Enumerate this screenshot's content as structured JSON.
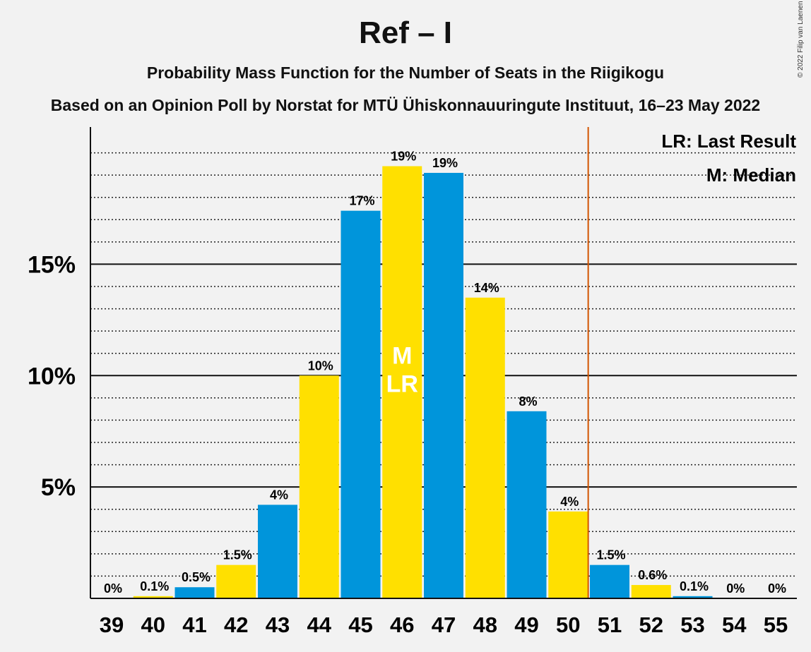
{
  "header": {
    "title": "Ref – I",
    "subtitle": "Probability Mass Function for the Number of Seats in the Riigikogu",
    "source": "Based on an Opinion Poll by Norstat for MTÜ Ühiskonnauuringute Instituut, 16–23 May 2022",
    "copyright": "© 2022 Filip van Laenen"
  },
  "legend": {
    "last_result": "LR: Last Result",
    "median": "M: Median"
  },
  "colors": {
    "blue": "#0095db",
    "yellow": "#ffe000",
    "last_result_line": "#d35400",
    "background": "#f2f2f2"
  },
  "chart_data": {
    "type": "bar",
    "categories": [
      "39",
      "40",
      "41",
      "42",
      "43",
      "44",
      "45",
      "46",
      "47",
      "48",
      "49",
      "50",
      "51",
      "52",
      "53",
      "54",
      "55"
    ],
    "values": [
      0,
      0.1,
      0.5,
      1.5,
      4.2,
      10.0,
      17.4,
      19.4,
      19.1,
      13.5,
      8.4,
      3.9,
      1.5,
      0.6,
      0.1,
      0,
      0
    ],
    "value_labels": [
      "0%",
      "0.1%",
      "0.5%",
      "1.5%",
      "4%",
      "10%",
      "17%",
      "19%",
      "19%",
      "14%",
      "8%",
      "4%",
      "1.5%",
      "0.6%",
      "0.1%",
      "0%",
      "0%"
    ],
    "bar_colors": [
      "yellow",
      "yellow",
      "blue",
      "yellow",
      "blue",
      "yellow",
      "blue",
      "yellow",
      "blue",
      "yellow",
      "blue",
      "yellow",
      "blue",
      "yellow",
      "blue",
      "yellow",
      "blue"
    ],
    "y_ticks": [
      5,
      10,
      15
    ],
    "y_tick_labels": [
      "5%",
      "10%",
      "15%"
    ],
    "ylim": [
      0,
      21
    ],
    "minor_gridlines_step": 1,
    "median_seat": "46",
    "last_result_seat": "46",
    "median_label": "M",
    "last_result_label": "LR",
    "majority_line_between": [
      "50",
      "51"
    ]
  }
}
